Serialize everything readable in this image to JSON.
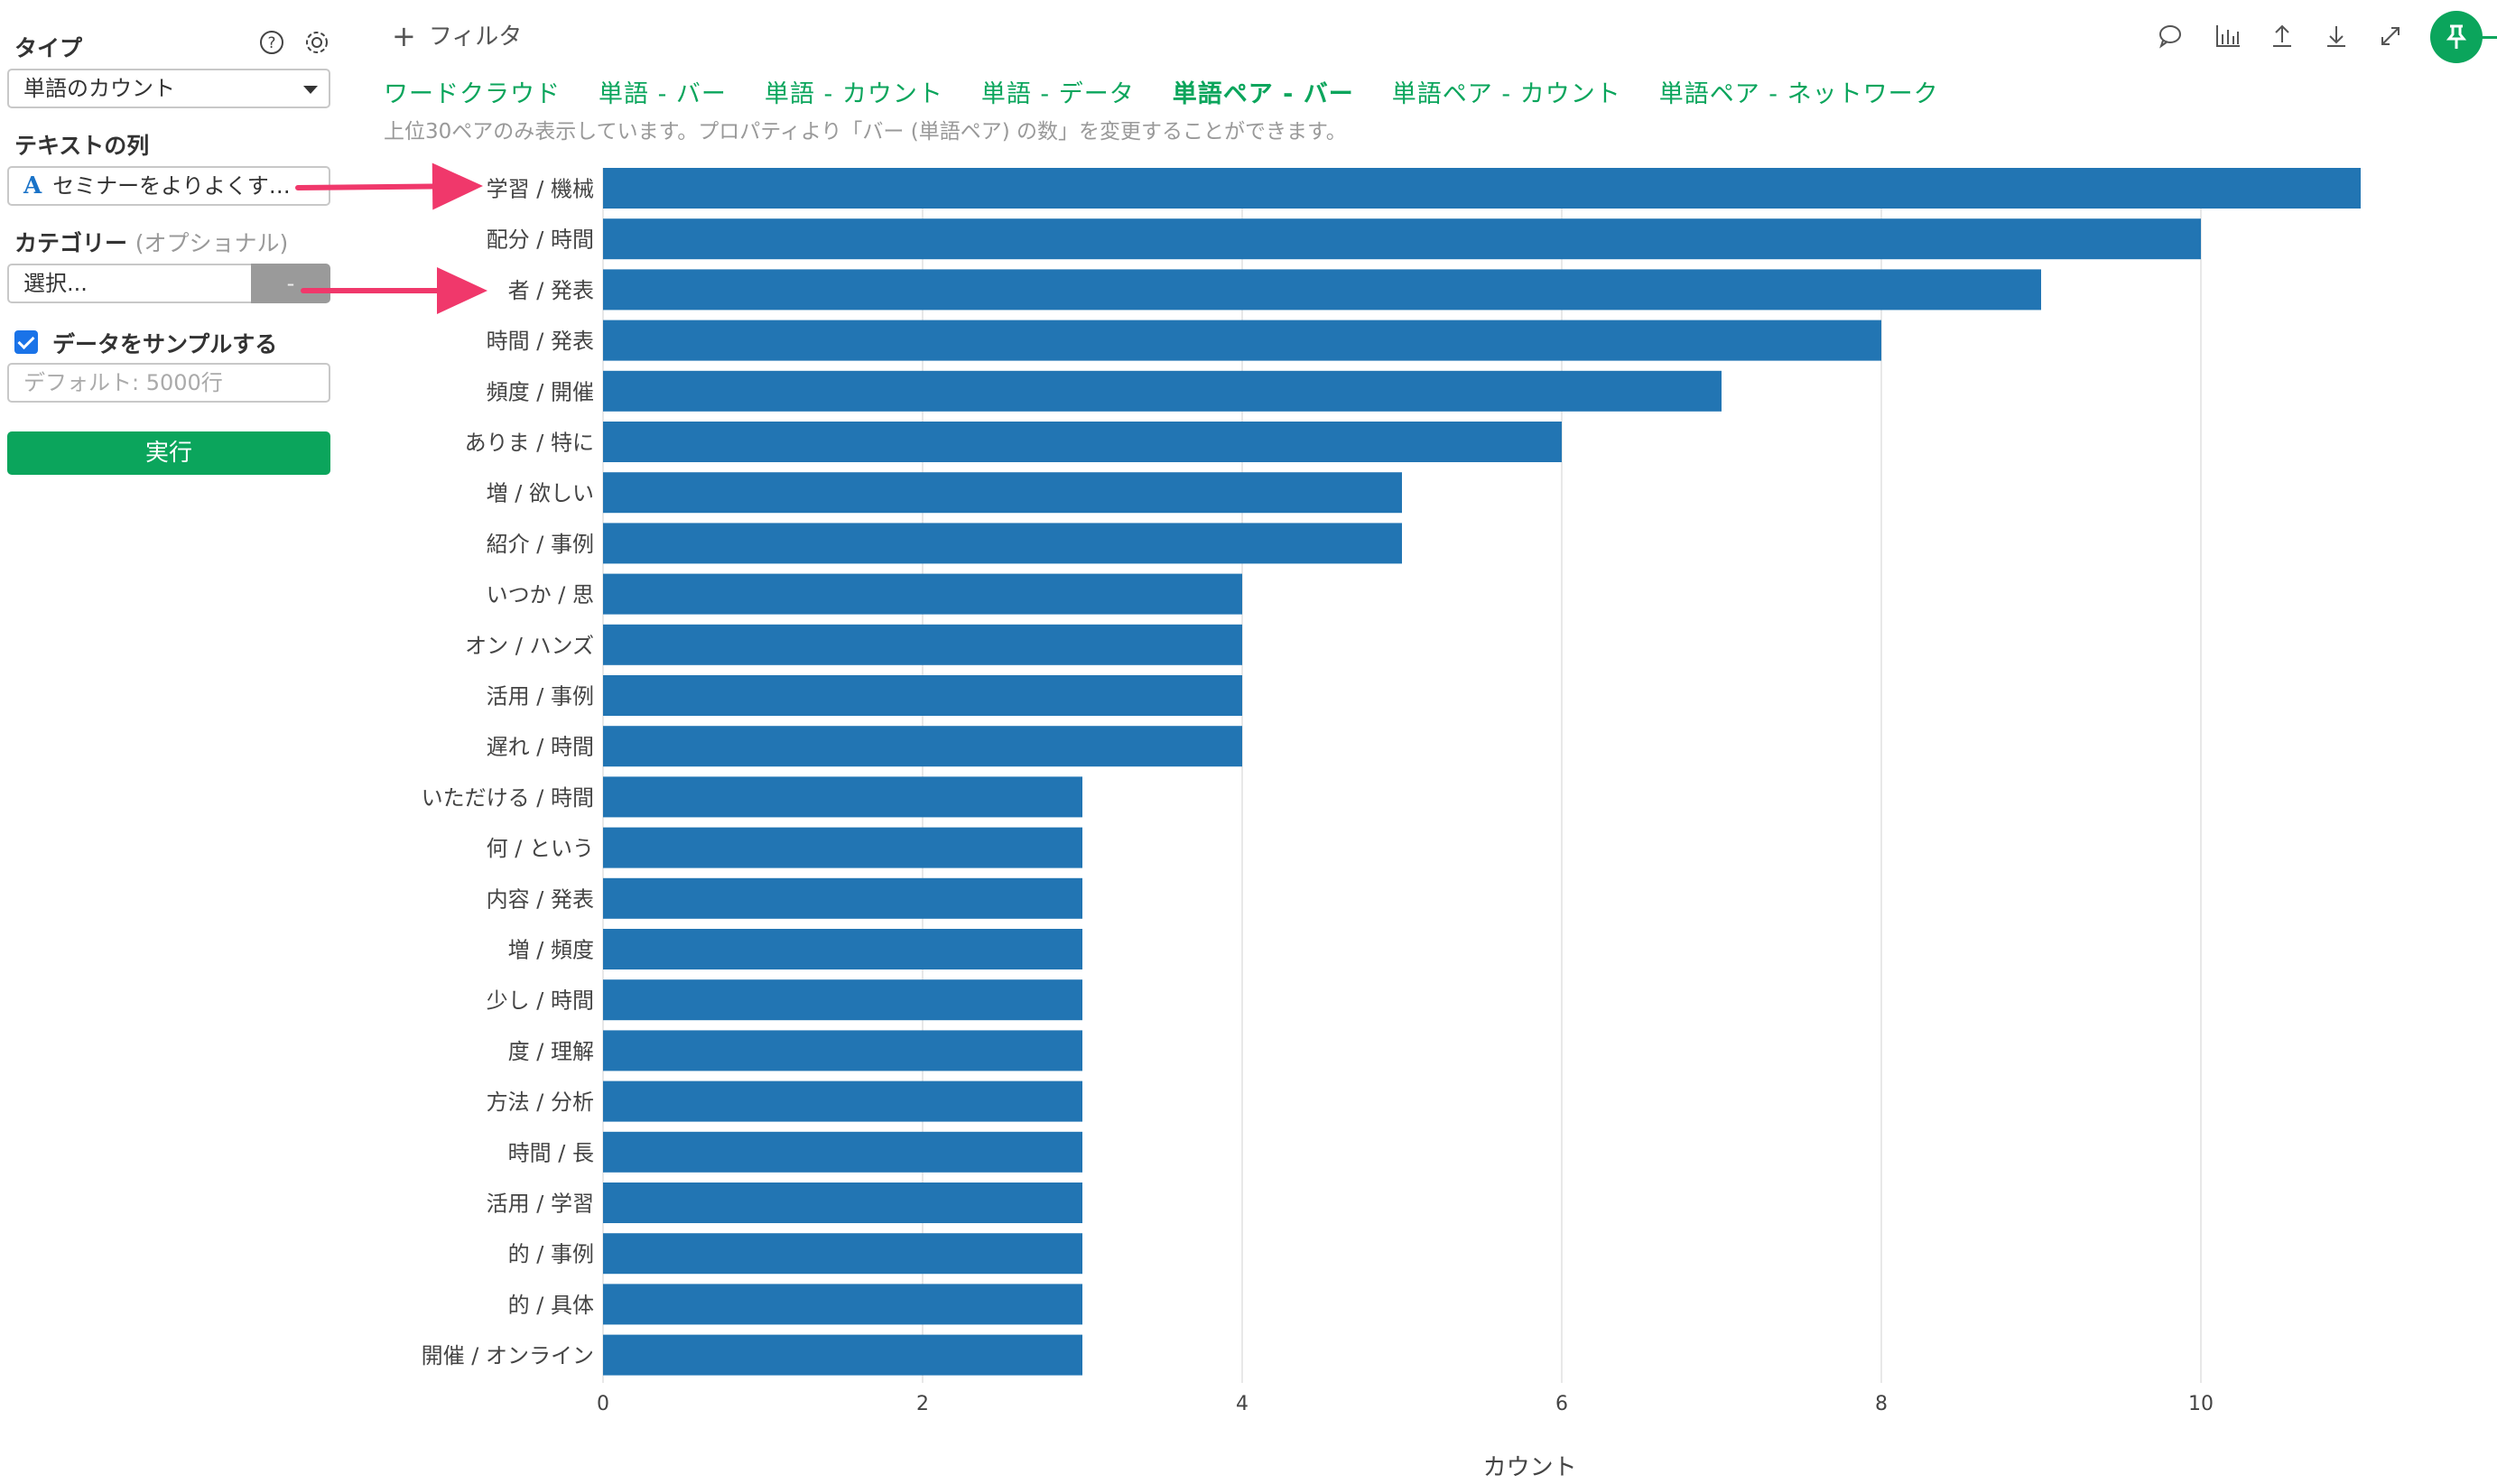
{
  "sidebar": {
    "type_label": "タイプ",
    "type_value": "単語のカウント",
    "text_column_label": "テキストの列",
    "text_column_value": "セミナーをよりよくす…",
    "text_column_icon": "A",
    "category_label": "カテゴリー",
    "category_optional": "(オプショナル)",
    "category_placeholder": "選択...",
    "category_button": "-",
    "sample_label": "データをサンプルする",
    "sample_checked": true,
    "sample_placeholder": "デフォルト: 5000行",
    "run_label": "実行",
    "help_icon": "help-circle-icon",
    "settings_icon": "gear-icon"
  },
  "topbar": {
    "filter_label": "フィルタ",
    "icons": [
      "comment-icon",
      "chart-icon",
      "upload-icon",
      "download-icon",
      "expand-icon",
      "pin-icon"
    ]
  },
  "tabs": [
    {
      "label": "ワードクラウド",
      "active": false
    },
    {
      "label": "単語 - バー",
      "active": false
    },
    {
      "label": "単語 - カウント",
      "active": false
    },
    {
      "label": "単語 - データ",
      "active": false
    },
    {
      "label": "単語ペア - バー",
      "active": true
    },
    {
      "label": "単語ペア - カウント",
      "active": false
    },
    {
      "label": "単語ペア - ネットワーク",
      "active": false
    }
  ],
  "note": "上位30ペアのみ表示しています。プロパティより「バー (単語ペア) の数」を変更することができます。",
  "colors": {
    "accent": "#0ba55c",
    "bar": "#2275b3",
    "annotation_arrow": "#f0386b"
  },
  "chart_data": {
    "type": "bar",
    "orientation": "horizontal",
    "categories": [
      "学習 / 機械",
      "配分 / 時間",
      "者 / 発表",
      "時間 / 発表",
      "頻度 / 開催",
      "ありま / 特に",
      "増 / 欲しい",
      "紹介 / 事例",
      "いつか / 思",
      "オン / ハンズ",
      "活用 / 事例",
      "遅れ / 時間",
      "いただける / 時間",
      "何 / という",
      "内容 / 発表",
      "増 / 頻度",
      "少し / 時間",
      "度 / 理解",
      "方法 / 分析",
      "時間 / 長",
      "活用 / 学習",
      "的 / 事例",
      "的 / 具体",
      "開催 / オンライン"
    ],
    "values": [
      11,
      10,
      9,
      8,
      7,
      6,
      5,
      5,
      4,
      4,
      4,
      4,
      3,
      3,
      3,
      3,
      3,
      3,
      3,
      3,
      3,
      3,
      3,
      3
    ],
    "xlabel": "カウント",
    "ylabel": "",
    "xlim": [
      0,
      11.5
    ],
    "xticks": [
      0,
      2,
      4,
      6,
      8,
      10
    ],
    "grid": "vertical"
  }
}
